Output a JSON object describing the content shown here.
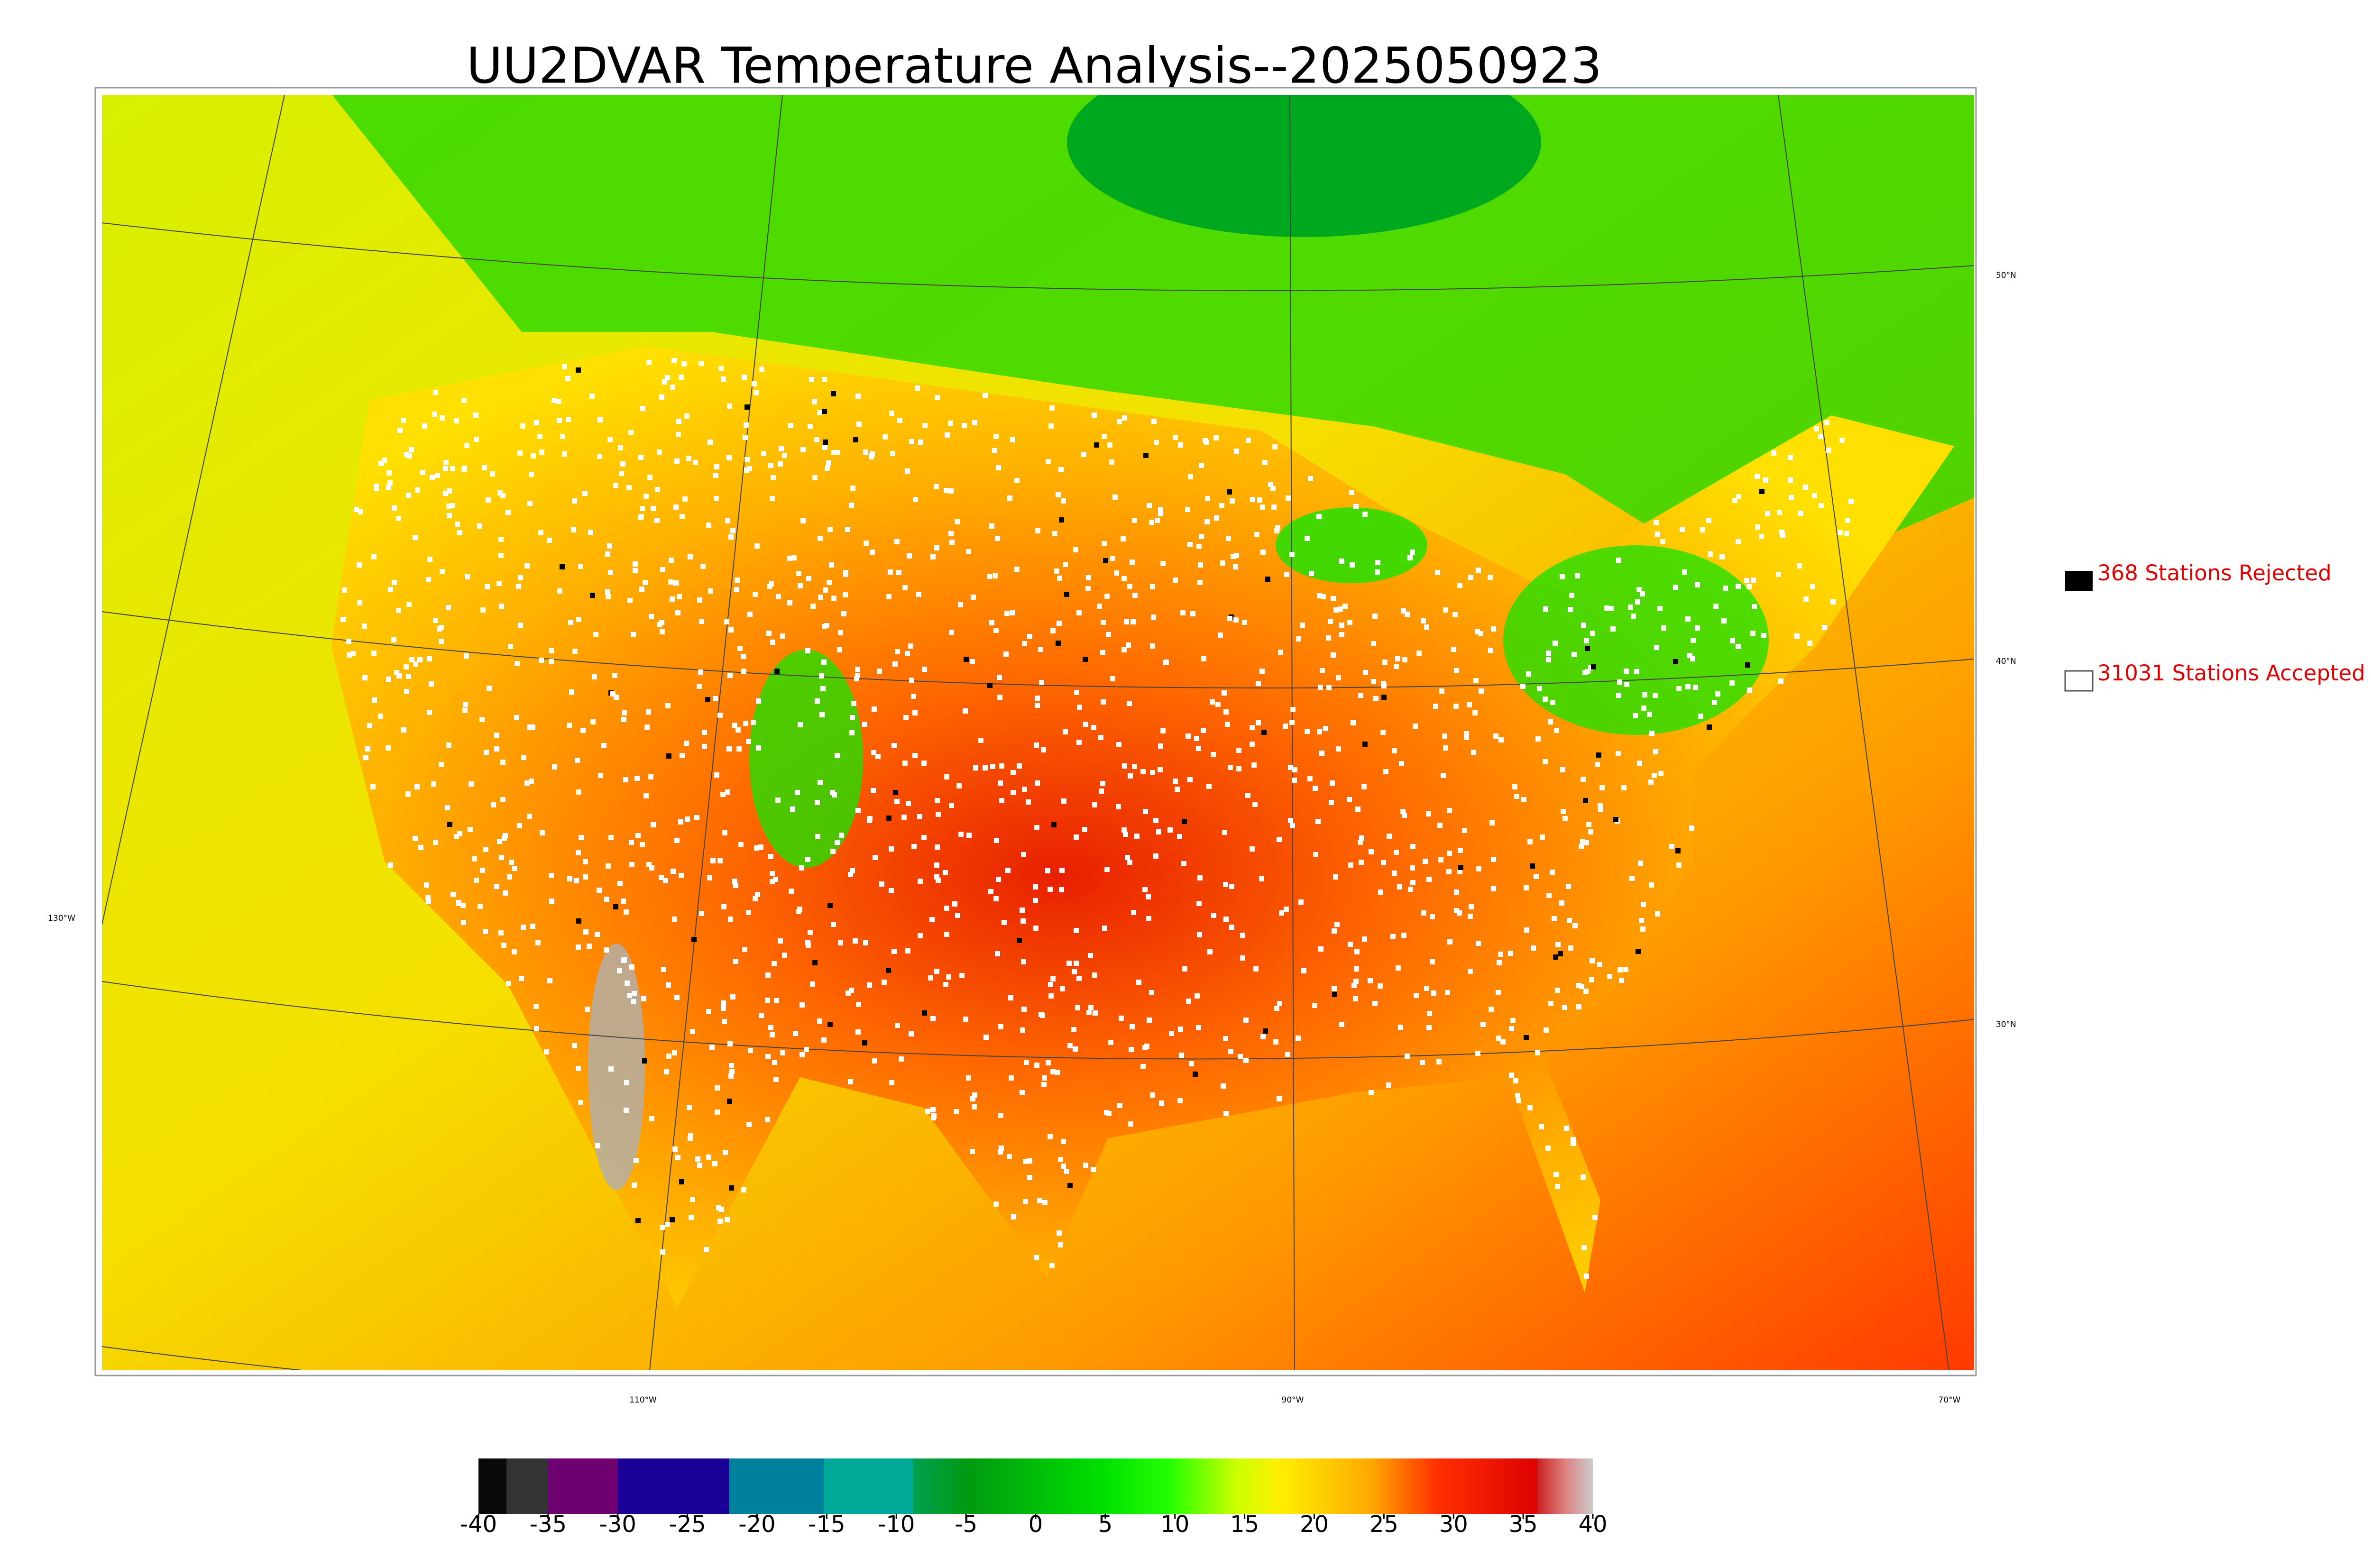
{
  "title": "UU2DVAR Temperature Analysis--2025050923",
  "legend": [
    {
      "label": "368 Stations Rejected"
    },
    {
      "label": "31031 Stations Accepted"
    }
  ],
  "map": {
    "lat_labels": [
      "50°N",
      "40°N",
      "30°N"
    ],
    "lon_labels": [
      "130°W",
      "110°W",
      "90°W",
      "70°W"
    ]
  },
  "colorbar": {
    "lim": [
      -40,
      40
    ],
    "ticks": [
      -40,
      -35,
      -30,
      -25,
      -20,
      -15,
      -10,
      -5,
      0,
      5,
      10,
      15,
      20,
      25,
      30,
      35,
      40
    ]
  }
}
